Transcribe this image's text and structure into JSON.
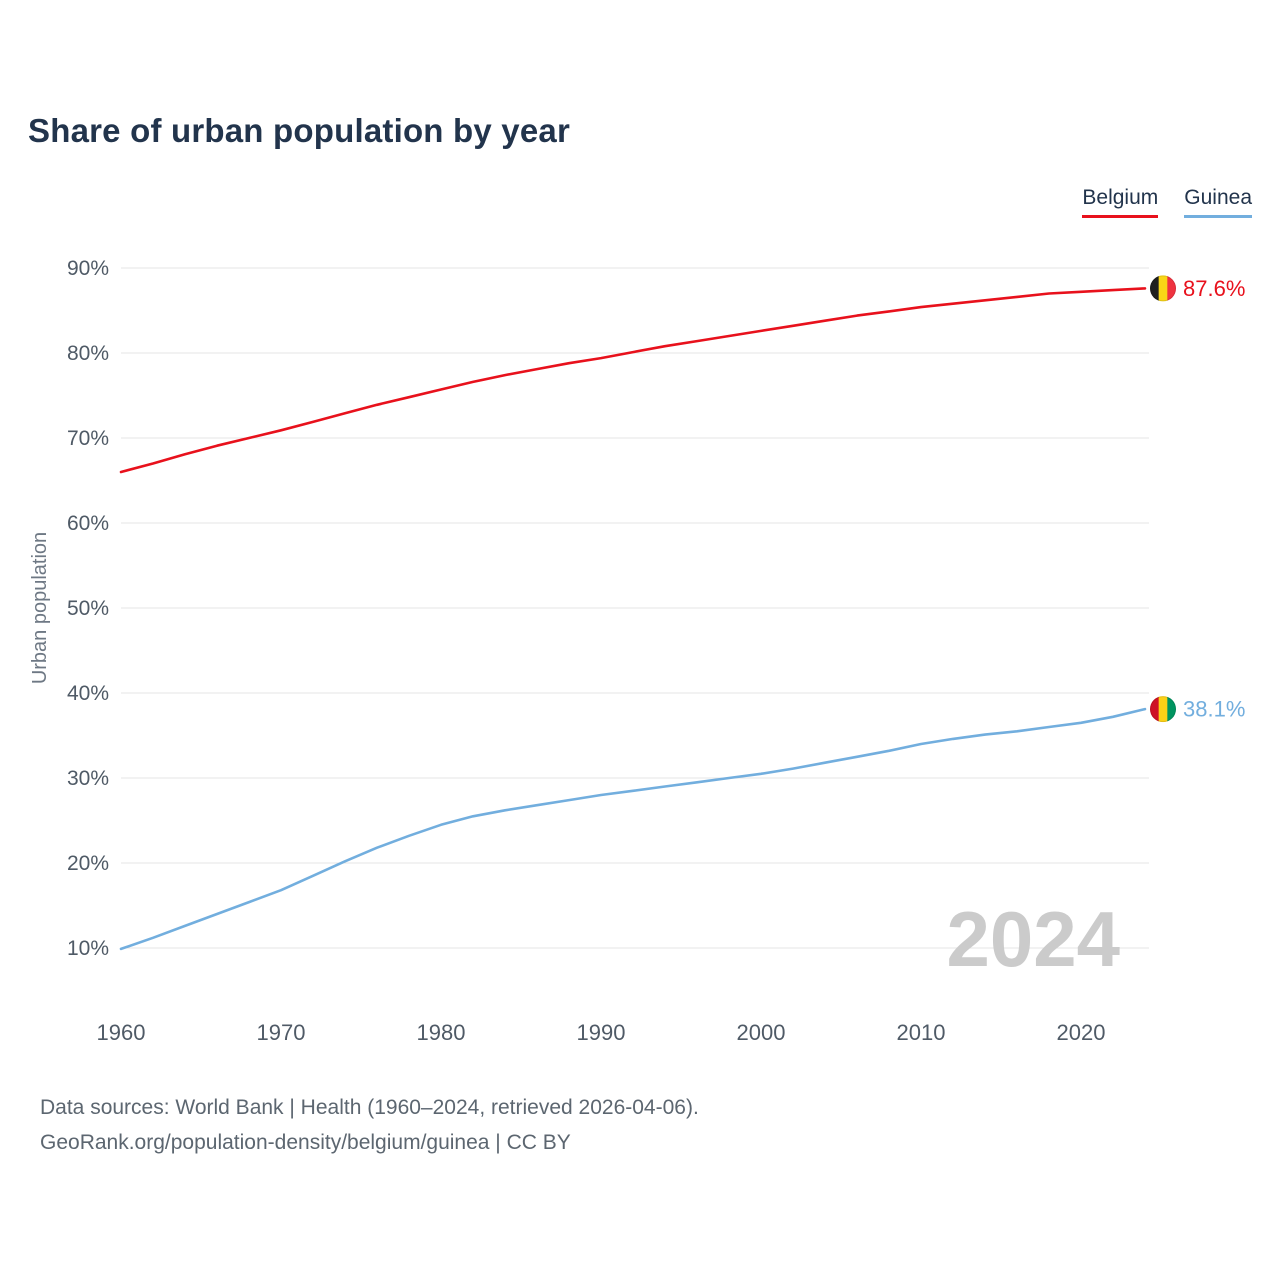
{
  "title": "Share of urban population by year",
  "watermark": "2024",
  "footer": {
    "line1": "Data sources: World Bank | Health (1960–2024, retrieved 2026-04-06).",
    "line2": "GeoRank.org/population-density/belgium/guinea | CC BY"
  },
  "chart_data": {
    "type": "line",
    "title": "Share of urban population by year",
    "xlabel": "",
    "ylabel": "Urban population",
    "legend_position": "top-right",
    "grid": "horizontal",
    "watermark": "2024",
    "xlim": [
      1960,
      2024
    ],
    "ylim": [
      10,
      90
    ],
    "x_ticks": [
      "1960",
      "1970",
      "1980",
      "1990",
      "2000",
      "2010",
      "2020"
    ],
    "y_ticks": [
      10,
      20,
      30,
      40,
      50,
      60,
      70,
      80,
      90
    ],
    "y_tick_suffix": "%",
    "x": [
      1960,
      1962,
      1964,
      1966,
      1968,
      1970,
      1972,
      1974,
      1976,
      1978,
      1980,
      1982,
      1984,
      1986,
      1988,
      1990,
      1992,
      1994,
      1996,
      1998,
      2000,
      2002,
      2004,
      2006,
      2008,
      2010,
      2012,
      2014,
      2016,
      2018,
      2020,
      2022,
      2024
    ],
    "series": [
      {
        "name": "Belgium",
        "color": "#e8111c",
        "end_label": "87.6%",
        "flag_colors": [
          "#1f1f1f",
          "#f9d616",
          "#ef3340"
        ],
        "values": [
          66.0,
          67.0,
          68.1,
          69.1,
          70.0,
          70.9,
          71.9,
          72.9,
          73.9,
          74.8,
          75.7,
          76.6,
          77.4,
          78.1,
          78.8,
          79.4,
          80.1,
          80.8,
          81.4,
          82.0,
          82.6,
          83.2,
          83.8,
          84.4,
          84.9,
          85.4,
          85.8,
          86.2,
          86.6,
          87.0,
          87.2,
          87.4,
          87.6
        ]
      },
      {
        "name": "Guinea",
        "color": "#72aede",
        "end_label": "38.1%",
        "flag_colors": [
          "#ce1126",
          "#fcd116",
          "#009460"
        ],
        "values": [
          9.9,
          11.2,
          12.6,
          14.0,
          15.4,
          16.8,
          18.5,
          20.2,
          21.8,
          23.2,
          24.5,
          25.5,
          26.2,
          26.8,
          27.4,
          28.0,
          28.5,
          29.0,
          29.5,
          30.0,
          30.5,
          31.1,
          31.8,
          32.5,
          33.2,
          34.0,
          34.6,
          35.1,
          35.5,
          36.0,
          36.5,
          37.2,
          38.1
        ]
      }
    ]
  }
}
